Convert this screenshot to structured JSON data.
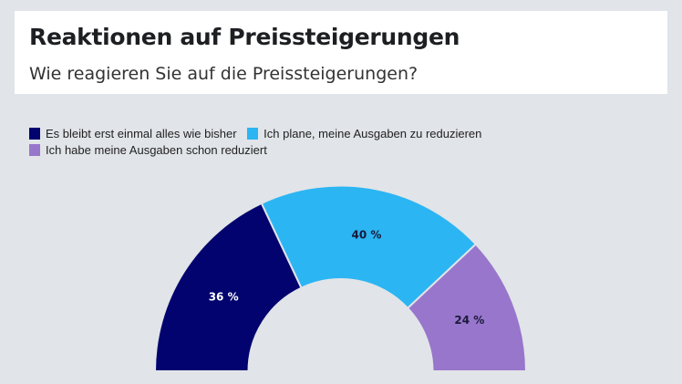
{
  "header": {
    "title": "Reaktionen auf Preissteigerungen",
    "subtitle": "Wie reagieren Sie auf die Preissteigerungen?"
  },
  "chart_data": {
    "type": "pie",
    "variant": "half-donut",
    "categories": [
      "Es bleibt erst einmal alles wie bisher",
      "Ich plane, meine Ausgaben zu reduzieren",
      "Ich habe meine Ausgaben schon reduziert"
    ],
    "values": [
      36,
      40,
      24
    ],
    "data_labels": [
      "36 %",
      "40 %",
      "24 %"
    ],
    "colors": [
      "#02036e",
      "#2bb5f3",
      "#9876cc"
    ],
    "label_colors": [
      "#ffffff",
      "#1a1a3a",
      "#1a1a3a"
    ],
    "legend_position": "top-left"
  }
}
